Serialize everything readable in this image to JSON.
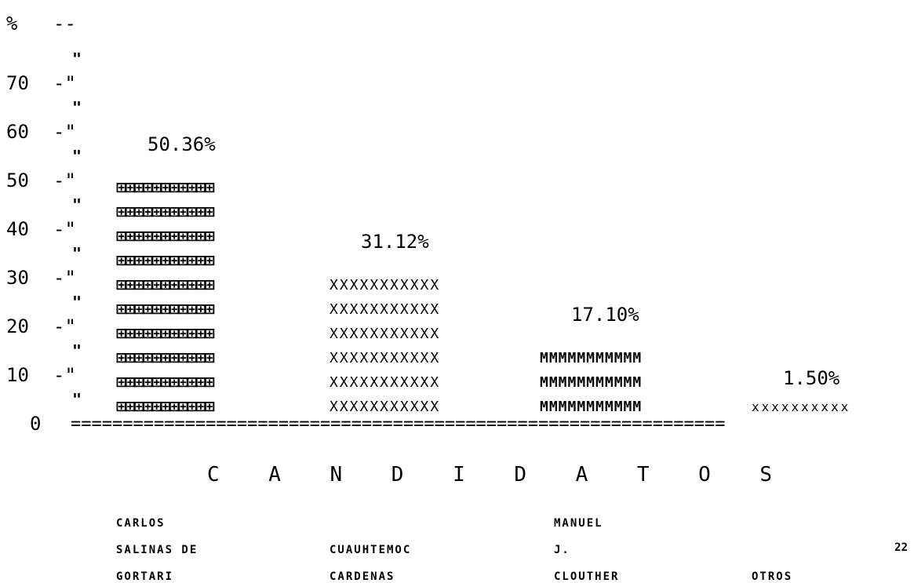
{
  "y_axis": {
    "unit_label": "%",
    "ticks": [
      "70",
      "60",
      "50",
      "40",
      "30",
      "20",
      "10",
      "0"
    ]
  },
  "chart_data": {
    "type": "bar",
    "xlabel": "C A N D I D A T O S",
    "ylabel": "%",
    "ylim": [
      0,
      80
    ],
    "categories": [
      "CARLOS SALINAS DE GORTARI",
      "CUAUHTEMOC CARDENAS",
      "MANUEL J. CLOUTHER",
      "OTROS"
    ],
    "values": [
      50.36,
      31.12,
      17.1,
      1.5
    ],
    "value_labels": [
      "50.36%",
      "31.12%",
      "17.10%",
      "1.50%"
    ],
    "bar_fill_chars": [
      "#",
      "X",
      "M",
      "x"
    ]
  },
  "candidates": [
    {
      "lines": [
        "CARLOS",
        "SALINAS DE",
        "GORTARI"
      ]
    },
    {
      "lines": [
        "",
        "CUAUHTEMOC",
        "CARDENAS"
      ]
    },
    {
      "lines": [
        "MANUEL",
        "J.",
        "CLOUTHER"
      ]
    },
    {
      "lines": [
        "",
        "",
        "OTROS"
      ]
    }
  ],
  "page_mark": "22"
}
